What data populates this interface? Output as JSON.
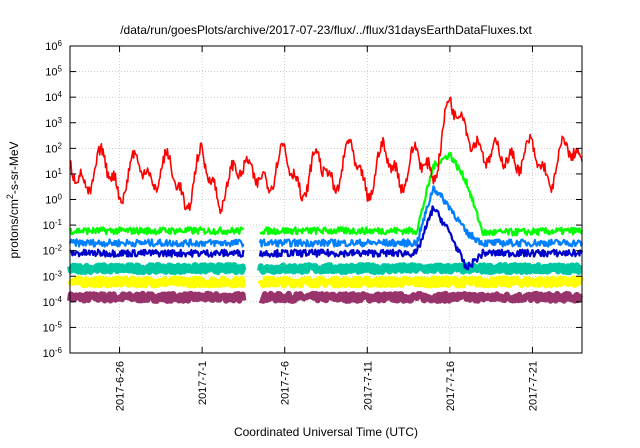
{
  "chart_data": {
    "type": "line",
    "title": "/data/run/goesPlots/archive/2017-07-23/flux/../flux/31daysEarthDataFluxes.txt",
    "xlabel": "Coordinated Universal Time (UTC)",
    "ylabel": {
      "prefix": "protons/cm",
      "sup": "2",
      "suffix": "-s-sr-MeV"
    },
    "xlim": [
      "2017-06-23",
      "2017-07-24"
    ],
    "ylim": [
      1e-06,
      1000000.0
    ],
    "yscale": "log",
    "grid": true,
    "y_ticks": [
      {
        "base": "10",
        "exp": "-6",
        "value": 1e-06
      },
      {
        "base": "10",
        "exp": "-5",
        "value": 1e-05
      },
      {
        "base": "10",
        "exp": "-4",
        "value": 0.0001
      },
      {
        "base": "10",
        "exp": "-3",
        "value": 0.001
      },
      {
        "base": "10",
        "exp": "-2",
        "value": 0.01
      },
      {
        "base": "10",
        "exp": "-1",
        "value": 0.1
      },
      {
        "base": "10",
        "exp": "0",
        "value": 1
      },
      {
        "base": "10",
        "exp": "1",
        "value": 10
      },
      {
        "base": "10",
        "exp": "2",
        "value": 100
      },
      {
        "base": "10",
        "exp": "3",
        "value": 1000
      },
      {
        "base": "10",
        "exp": "4",
        "value": 10000
      },
      {
        "base": "10",
        "exp": "5",
        "value": 100000
      },
      {
        "base": "10",
        "exp": "6",
        "value": 1000000
      }
    ],
    "x_ticks": [
      {
        "label": "2017-6-26",
        "date": "2017-06-26"
      },
      {
        "label": "2017-7-1",
        "date": "2017-07-01"
      },
      {
        "label": "2017-7-6",
        "date": "2017-07-06"
      },
      {
        "label": "2017-7-11",
        "date": "2017-07-11"
      },
      {
        "label": "2017-7-16",
        "date": "2017-07-16"
      },
      {
        "label": "2017-7-21",
        "date": "2017-07-21"
      }
    ],
    "data_gaps": [
      [
        "2017-07-03T12:00",
        "2017-07-04T12:00"
      ]
    ],
    "series": [
      {
        "color": "#ff0000",
        "x": [
          "2017-06-23",
          "2017-06-24",
          "2017-06-25",
          "2017-06-26",
          "2017-06-27",
          "2017-06-28",
          "2017-06-29",
          "2017-06-30",
          "2017-07-01",
          "2017-07-02",
          "2017-07-03",
          "2017-07-04",
          "2017-07-05",
          "2017-07-06",
          "2017-07-07",
          "2017-07-08",
          "2017-07-09",
          "2017-07-10",
          "2017-07-11",
          "2017-07-12",
          "2017-07-13",
          "2017-07-14",
          "2017-07-15",
          "2017-07-16",
          "2017-07-17",
          "2017-07-18",
          "2017-07-19",
          "2017-07-20",
          "2017-07-21",
          "2017-07-22",
          "2017-07-23",
          "2017-07-24"
        ],
        "y": [
          30,
          2,
          80,
          1,
          60,
          3,
          50,
          0.3,
          100,
          0.5,
          20,
          15,
          3,
          120,
          1,
          80,
          2,
          200,
          1,
          150,
          3,
          100,
          5,
          10000,
          500,
          50,
          80,
          20,
          150,
          3,
          200,
          20
        ]
      },
      {
        "color": "#00ff00",
        "x": [
          "2017-06-23",
          "2017-07-03",
          "2017-07-04",
          "2017-07-14",
          "2017-07-15",
          "2017-07-16",
          "2017-07-17",
          "2017-07-18",
          "2017-07-24"
        ],
        "y": [
          0.06,
          0.06,
          0.06,
          0.06,
          20,
          60,
          5,
          0.05,
          0.06
        ]
      },
      {
        "color": "#0080ff",
        "x": [
          "2017-06-23",
          "2017-07-03",
          "2017-07-04",
          "2017-07-14",
          "2017-07-15",
          "2017-07-16",
          "2017-07-17",
          "2017-07-18",
          "2017-07-24"
        ],
        "y": [
          0.02,
          0.02,
          0.02,
          0.02,
          3,
          0.5,
          0.05,
          0.02,
          0.02
        ]
      },
      {
        "color": "#0000cc",
        "x": [
          "2017-06-23",
          "2017-07-03",
          "2017-07-04",
          "2017-07-14",
          "2017-07-15",
          "2017-07-16",
          "2017-07-17",
          "2017-07-18",
          "2017-07-24"
        ],
        "y": [
          0.008,
          0.008,
          0.008,
          0.008,
          0.5,
          0.05,
          0.002,
          0.008,
          0.008
        ]
      },
      {
        "color": "#00c8a0",
        "x": [
          "2017-06-23",
          "2017-07-24"
        ],
        "y": [
          0.002,
          0.002
        ]
      },
      {
        "color": "#ffff00",
        "x": [
          "2017-06-23",
          "2017-07-24"
        ],
        "y": [
          0.0006,
          0.0006
        ]
      },
      {
        "color": "#99336b",
        "x": [
          "2017-06-23",
          "2017-07-24"
        ],
        "y": [
          0.00015,
          0.00015
        ]
      }
    ]
  }
}
